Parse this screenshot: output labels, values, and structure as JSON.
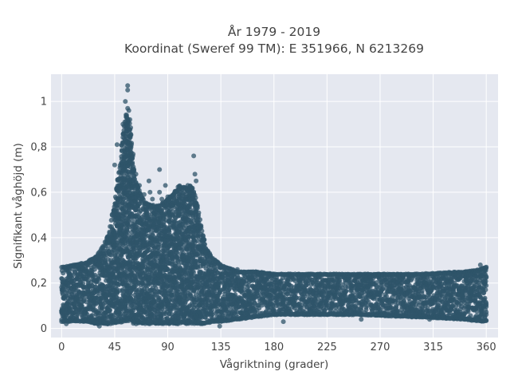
{
  "chart_data": {
    "type": "scatter",
    "title_line1": "År 1979 - 2019",
    "title_line2": "Koordinat (Sweref 99 TM): E 351966, N 6213269",
    "xlabel": "Vågriktning (grader)",
    "ylabel": "Signifikant våghöjd (m)",
    "xlim": [
      -9,
      370
    ],
    "ylim": [
      -0.04,
      1.12
    ],
    "xticks": [
      0,
      45,
      90,
      135,
      180,
      225,
      270,
      315,
      360
    ],
    "xtick_labels": [
      "0",
      "45",
      "90",
      "135",
      "180",
      "225",
      "270",
      "315",
      "360"
    ],
    "yticks": [
      0,
      0.2,
      0.4,
      0.6,
      0.8,
      1
    ],
    "ytick_labels": [
      "0",
      "0,2",
      "0,4",
      "0,6",
      "0,8",
      "1"
    ],
    "grid": true,
    "marker_color": "#2f5469",
    "plot_background": "#e5e8f0",
    "envelope": {
      "x": [
        0,
        10,
        20,
        30,
        35,
        40,
        45,
        50,
        52,
        55,
        58,
        62,
        70,
        80,
        88,
        95,
        100,
        105,
        110,
        115,
        118,
        122,
        128,
        135,
        150,
        165,
        180,
        200,
        250,
        300,
        340,
        355,
        360
      ],
      "y_max": [
        0.27,
        0.28,
        0.29,
        0.32,
        0.36,
        0.42,
        0.55,
        0.75,
        0.86,
        0.95,
        0.92,
        0.66,
        0.56,
        0.54,
        0.56,
        0.6,
        0.63,
        0.62,
        0.63,
        0.55,
        0.45,
        0.36,
        0.31,
        0.28,
        0.25,
        0.25,
        0.24,
        0.24,
        0.24,
        0.24,
        0.25,
        0.26,
        0.27
      ],
      "y_min": [
        0.03,
        0.03,
        0.03,
        0.02,
        0.02,
        0.02,
        0.02,
        0.02,
        0.03,
        0.03,
        0.03,
        0.02,
        0.02,
        0.02,
        0.02,
        0.02,
        0.02,
        0.02,
        0.02,
        0.02,
        0.02,
        0.02,
        0.03,
        0.03,
        0.04,
        0.05,
        0.06,
        0.06,
        0.06,
        0.05,
        0.04,
        0.03,
        0.03
      ]
    },
    "outliers": [
      {
        "x": 56,
        "y": 1.07
      },
      {
        "x": 56,
        "y": 1.05
      },
      {
        "x": 54,
        "y": 1.0
      },
      {
        "x": 56,
        "y": 0.97
      },
      {
        "x": 52,
        "y": 0.9
      },
      {
        "x": 57,
        "y": 0.96
      },
      {
        "x": 47,
        "y": 0.81
      },
      {
        "x": 45,
        "y": 0.72
      },
      {
        "x": 60,
        "y": 0.73
      },
      {
        "x": 63,
        "y": 0.68
      },
      {
        "x": 74,
        "y": 0.65
      },
      {
        "x": 83,
        "y": 0.7
      },
      {
        "x": 62,
        "y": 0.62
      },
      {
        "x": 66,
        "y": 0.63
      },
      {
        "x": 70,
        "y": 0.59
      },
      {
        "x": 75,
        "y": 0.6
      },
      {
        "x": 77,
        "y": 0.57
      },
      {
        "x": 83,
        "y": 0.6
      },
      {
        "x": 88,
        "y": 0.63
      },
      {
        "x": 85,
        "y": 0.57
      },
      {
        "x": 90,
        "y": 0.58
      },
      {
        "x": 112,
        "y": 0.76
      },
      {
        "x": 113,
        "y": 0.68
      },
      {
        "x": 110,
        "y": 0.62
      },
      {
        "x": 107,
        "y": 0.63
      },
      {
        "x": 114,
        "y": 0.65
      },
      {
        "x": 144,
        "y": 0.2
      },
      {
        "x": 149,
        "y": 0.26
      },
      {
        "x": 160,
        "y": 0.24
      },
      {
        "x": 188,
        "y": 0.03
      },
      {
        "x": 254,
        "y": 0.04
      },
      {
        "x": 271,
        "y": 0.06
      },
      {
        "x": 297,
        "y": 0.05
      },
      {
        "x": 312,
        "y": 0.04
      },
      {
        "x": 32,
        "y": 0.01
      },
      {
        "x": 134,
        "y": 0.01
      },
      {
        "x": 4,
        "y": 0.02
      },
      {
        "x": 355,
        "y": 0.28
      }
    ]
  }
}
